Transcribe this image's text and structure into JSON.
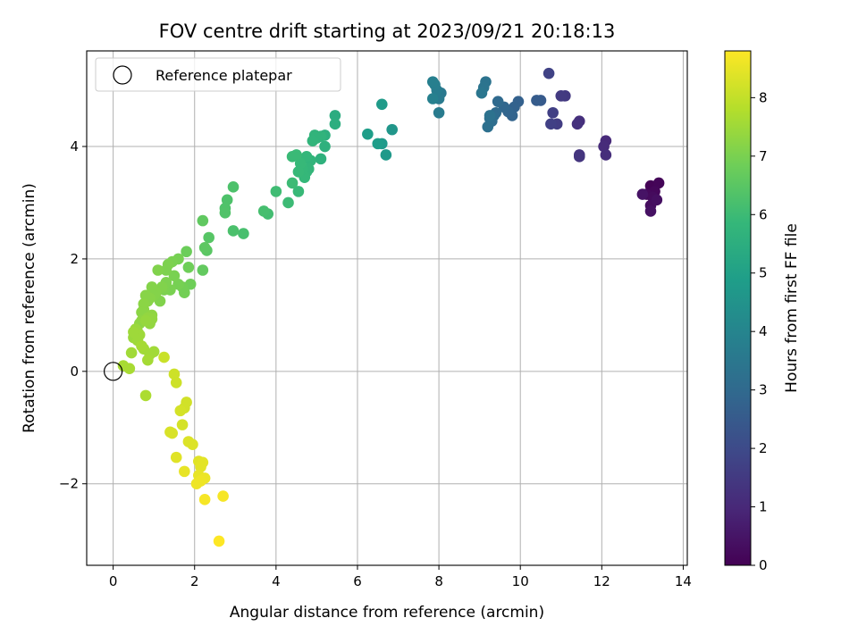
{
  "chart_data": {
    "type": "scatter",
    "title": "FOV centre drift starting at 2023/09/21 20:18:13",
    "xlabel": "Angular distance from reference (arcmin)",
    "ylabel": "Rotation from reference (arcmin)",
    "xlim": [
      -0.65,
      14.1
    ],
    "ylim": [
      -3.45,
      5.7
    ],
    "xticks": [
      0,
      2,
      4,
      6,
      8,
      10,
      12,
      14
    ],
    "yticks": [
      -2,
      0,
      2,
      4
    ],
    "grid": true,
    "legend": {
      "placement": "top-left",
      "entries": [
        "Reference platepar"
      ]
    },
    "reference_point": {
      "x": 0,
      "y": 0,
      "marker": "open-circle"
    },
    "colorbar": {
      "label": "Hours from first FF file",
      "colormap": "viridis",
      "range": [
        0,
        8.8
      ],
      "ticks": [
        0,
        1,
        2,
        3,
        4,
        5,
        6,
        7,
        8
      ]
    },
    "points": [
      [
        13.2,
        3.3,
        0.05
      ],
      [
        13.4,
        3.35,
        0.1
      ],
      [
        13.3,
        3.2,
        0.15
      ],
      [
        13.1,
        3.15,
        0.2
      ],
      [
        13.25,
        3.1,
        0.25
      ],
      [
        13.2,
        2.95,
        0.3
      ],
      [
        13.35,
        3.05,
        0.35
      ],
      [
        13.2,
        2.85,
        0.4
      ],
      [
        13.0,
        3.15,
        0.45
      ],
      [
        12.1,
        4.1,
        1.05
      ],
      [
        12.05,
        4.0,
        1.1
      ],
      [
        12.1,
        3.85,
        1.15
      ],
      [
        11.45,
        4.45,
        1.2
      ],
      [
        11.4,
        4.4,
        1.25
      ],
      [
        11.45,
        3.85,
        1.3
      ],
      [
        11.45,
        3.82,
        1.35
      ],
      [
        11.1,
        4.9,
        1.45
      ],
      [
        11.0,
        4.9,
        1.5
      ],
      [
        10.9,
        4.4,
        1.6
      ],
      [
        10.8,
        4.6,
        1.65
      ],
      [
        10.75,
        4.4,
        1.7
      ],
      [
        10.7,
        5.3,
        1.75
      ],
      [
        10.5,
        4.82,
        2.5
      ],
      [
        10.4,
        4.82,
        2.55
      ],
      [
        9.95,
        4.8,
        2.7
      ],
      [
        9.85,
        4.7,
        2.75
      ],
      [
        9.8,
        4.55,
        2.8
      ],
      [
        9.7,
        4.62,
        2.85
      ],
      [
        9.6,
        4.7,
        2.9
      ],
      [
        9.45,
        4.8,
        3.0
      ],
      [
        9.4,
        4.6,
        3.05
      ],
      [
        9.35,
        4.55,
        3.1
      ],
      [
        9.3,
        4.45,
        3.15
      ],
      [
        9.25,
        4.5,
        3.2
      ],
      [
        9.2,
        4.35,
        3.25
      ],
      [
        9.25,
        4.55,
        3.3
      ],
      [
        9.15,
        5.15,
        3.35
      ],
      [
        9.1,
        5.05,
        3.4
      ],
      [
        9.05,
        4.95,
        3.45
      ],
      [
        8.05,
        4.95,
        3.55
      ],
      [
        8.0,
        4.85,
        3.6
      ],
      [
        8.0,
        4.6,
        3.65
      ],
      [
        7.95,
        5.0,
        3.7
      ],
      [
        7.9,
        5.1,
        3.75
      ],
      [
        7.85,
        5.15,
        3.8
      ],
      [
        7.85,
        4.85,
        3.85
      ],
      [
        6.85,
        4.3,
        4.6
      ],
      [
        6.7,
        3.85,
        4.7
      ],
      [
        6.6,
        4.05,
        4.75
      ],
      [
        6.6,
        4.75,
        4.8
      ],
      [
        6.5,
        4.05,
        4.85
      ],
      [
        6.25,
        4.22,
        4.9
      ],
      [
        5.45,
        4.55,
        5.45
      ],
      [
        5.45,
        4.4,
        5.5
      ],
      [
        5.2,
        4.2,
        5.55
      ],
      [
        5.2,
        4.0,
        5.6
      ],
      [
        5.1,
        3.78,
        5.65
      ],
      [
        5.1,
        4.18,
        5.7
      ],
      [
        5.0,
        4.15,
        5.7
      ],
      [
        4.95,
        4.2,
        5.72
      ],
      [
        4.9,
        4.1,
        5.75
      ],
      [
        4.85,
        3.75,
        5.75
      ],
      [
        4.8,
        3.6,
        5.8
      ],
      [
        4.75,
        3.55,
        5.8
      ],
      [
        4.75,
        3.82,
        5.82
      ],
      [
        4.7,
        3.45,
        5.85
      ],
      [
        4.65,
        3.6,
        5.85
      ],
      [
        4.6,
        3.7,
        5.9
      ],
      [
        4.55,
        3.55,
        5.9
      ],
      [
        4.55,
        3.2,
        5.92
      ],
      [
        4.5,
        3.85,
        5.95
      ],
      [
        4.4,
        3.82,
        5.95
      ],
      [
        4.4,
        3.35,
        6.0
      ],
      [
        4.3,
        3.0,
        6.0
      ],
      [
        4.0,
        3.2,
        6.05
      ],
      [
        3.8,
        2.8,
        6.1
      ],
      [
        3.7,
        2.85,
        6.15
      ],
      [
        3.2,
        2.45,
        6.2
      ],
      [
        2.95,
        2.5,
        6.25
      ],
      [
        2.95,
        3.28,
        6.28
      ],
      [
        2.8,
        3.05,
        6.3
      ],
      [
        2.75,
        2.9,
        6.32
      ],
      [
        2.75,
        2.82,
        6.35
      ],
      [
        2.35,
        2.38,
        6.45
      ],
      [
        2.3,
        2.15,
        6.5
      ],
      [
        2.25,
        2.2,
        6.55
      ],
      [
        2.2,
        2.68,
        6.6
      ],
      [
        2.2,
        1.8,
        6.65
      ],
      [
        1.8,
        2.13,
        6.8
      ],
      [
        1.85,
        1.85,
        6.85
      ],
      [
        1.9,
        1.55,
        6.85
      ],
      [
        1.75,
        1.4,
        6.9
      ],
      [
        1.7,
        1.5,
        6.9
      ],
      [
        1.6,
        2.0,
        6.95
      ],
      [
        1.6,
        1.55,
        6.95
      ],
      [
        1.5,
        1.7,
        7.0
      ],
      [
        1.45,
        1.95,
        7.0
      ],
      [
        1.4,
        1.45,
        7.0
      ],
      [
        1.35,
        1.9,
        7.05
      ],
      [
        1.3,
        1.8,
        7.05
      ],
      [
        1.3,
        1.58,
        7.05
      ],
      [
        1.25,
        1.45,
        7.05
      ],
      [
        1.2,
        1.5,
        7.1
      ],
      [
        1.15,
        1.25,
        7.1
      ],
      [
        1.1,
        1.8,
        7.1
      ],
      [
        1.05,
        1.4,
        7.15
      ],
      [
        1.0,
        1.35,
        7.15
      ],
      [
        0.95,
        1.5,
        7.15
      ],
      [
        0.9,
        1.3,
        7.2
      ],
      [
        0.85,
        1.25,
        7.2
      ],
      [
        0.8,
        1.35,
        7.2
      ],
      [
        0.75,
        1.1,
        7.25
      ],
      [
        0.75,
        1.2,
        7.25
      ],
      [
        0.7,
        1.05,
        7.25
      ],
      [
        0.7,
        0.9,
        7.3
      ],
      [
        0.65,
        0.85,
        7.3
      ],
      [
        0.95,
        1.0,
        7.3
      ],
      [
        0.9,
        0.85,
        7.35
      ],
      [
        0.95,
        0.93,
        7.35
      ],
      [
        0.85,
        0.95,
        7.35
      ],
      [
        0.8,
        0.9,
        7.4
      ],
      [
        0.6,
        0.7,
        7.4
      ],
      [
        0.55,
        0.75,
        7.45
      ],
      [
        0.5,
        0.6,
        7.45
      ],
      [
        0.6,
        0.55,
        7.5
      ],
      [
        0.65,
        0.65,
        7.5
      ],
      [
        0.5,
        0.7,
        7.5
      ],
      [
        0.75,
        0.4,
        7.55
      ],
      [
        0.45,
        0.33,
        7.55
      ],
      [
        1.0,
        0.35,
        7.55
      ],
      [
        0.9,
        0.3,
        7.55
      ],
      [
        0.85,
        0.2,
        7.6
      ],
      [
        0.7,
        0.45,
        7.6
      ],
      [
        0.25,
        0.1,
        7.65
      ],
      [
        0.4,
        0.05,
        7.65
      ],
      [
        0.8,
        -0.43,
        7.7
      ],
      [
        1.25,
        0.25,
        8.1
      ],
      [
        1.5,
        -0.05,
        8.15
      ],
      [
        1.55,
        -0.2,
        8.15
      ],
      [
        1.8,
        -0.55,
        8.2
      ],
      [
        1.75,
        -0.65,
        8.2
      ],
      [
        1.65,
        -0.7,
        8.25
      ],
      [
        1.7,
        -0.95,
        8.25
      ],
      [
        1.4,
        -1.08,
        8.3
      ],
      [
        1.45,
        -1.1,
        8.3
      ],
      [
        1.85,
        -1.25,
        8.35
      ],
      [
        1.95,
        -1.3,
        8.35
      ],
      [
        1.55,
        -1.53,
        8.4
      ],
      [
        2.1,
        -1.6,
        8.4
      ],
      [
        2.2,
        -1.62,
        8.45
      ],
      [
        2.15,
        -1.7,
        8.45
      ],
      [
        1.75,
        -1.78,
        8.5
      ],
      [
        2.1,
        -1.85,
        8.5
      ],
      [
        2.25,
        -1.9,
        8.55
      ],
      [
        2.05,
        -2.0,
        8.6
      ],
      [
        2.15,
        -1.95,
        8.6
      ],
      [
        2.7,
        -2.22,
        8.7
      ],
      [
        2.25,
        -2.28,
        8.7
      ],
      [
        2.6,
        -3.02,
        8.8
      ]
    ]
  }
}
